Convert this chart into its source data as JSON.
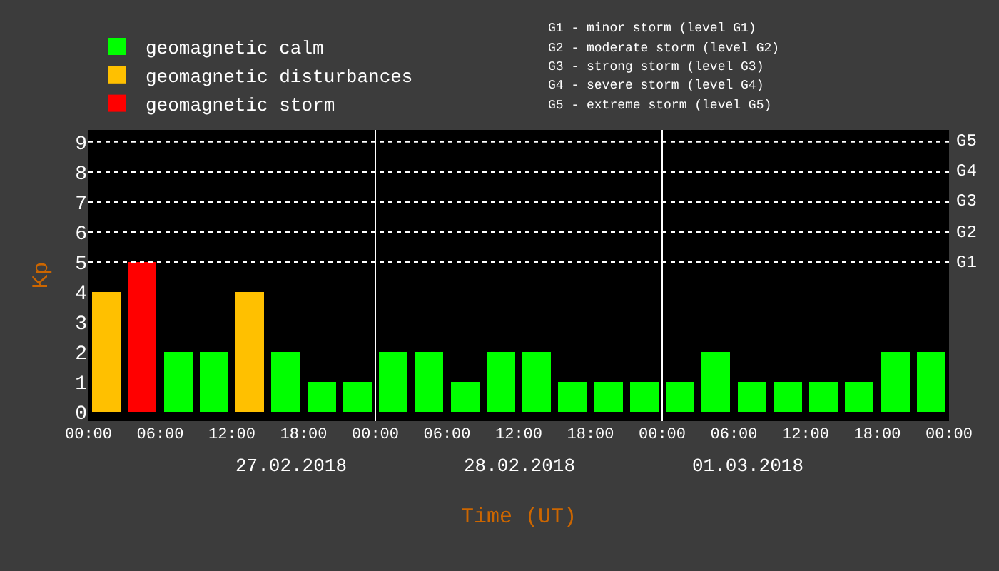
{
  "chart_data": {
    "type": "bar",
    "stacked": true,
    "xlabel": "Time (UT)",
    "ylabel": "Kp",
    "x": [
      "2018-02-27T01:30",
      "2018-02-27T04:30",
      "2018-02-27T07:30",
      "2018-02-27T10:30",
      "2018-02-27T13:30",
      "2018-02-27T16:30",
      "2018-02-27T19:30",
      "2018-02-27T22:30",
      "2018-02-28T01:30",
      "2018-02-28T04:30",
      "2018-02-28T07:30",
      "2018-02-28T10:30",
      "2018-02-28T13:30",
      "2018-02-28T16:30",
      "2018-02-28T19:30",
      "2018-02-28T22:30",
      "2018-03-01T01:30",
      "2018-03-01T04:30",
      "2018-03-01T07:30",
      "2018-03-01T10:30",
      "2018-03-01T13:30",
      "2018-03-01T16:30",
      "2018-03-01T19:30",
      "2018-03-01T22:30"
    ],
    "series": [
      {
        "name": "geomagnetic calm",
        "color": "#00ff00",
        "values": [
          null,
          null,
          2,
          2,
          null,
          2,
          1,
          1,
          2,
          2,
          1,
          2,
          2,
          1,
          1,
          1,
          1,
          2,
          1,
          1,
          1,
          1,
          2,
          2
        ]
      },
      {
        "name": "geomagnetic disturbances",
        "color": "#ffc000",
        "values": [
          4,
          null,
          null,
          null,
          4,
          null,
          null,
          null,
          null,
          null,
          null,
          null,
          null,
          null,
          null,
          null,
          null,
          null,
          null,
          null,
          null,
          null,
          null,
          null
        ]
      },
      {
        "name": "geomagnetic storm",
        "color": "#ff0000",
        "values": [
          null,
          5,
          null,
          null,
          null,
          null,
          null,
          null,
          null,
          null,
          null,
          null,
          null,
          null,
          null,
          null,
          null,
          null,
          null,
          null,
          null,
          null,
          null,
          null
        ]
      }
    ],
    "xlim": [
      "2018-02-27T00:00",
      "2018-03-02T00:00"
    ],
    "xticks": [
      {
        "value": "2018-02-27T00:00",
        "label": "00:00"
      },
      {
        "value": "2018-02-27T06:00",
        "label": "06:00"
      },
      {
        "value": "2018-02-27T12:00",
        "label": "12:00"
      },
      {
        "value": "2018-02-27T18:00",
        "label": "18:00"
      },
      {
        "value": "2018-02-28T00:00",
        "label": "00:00"
      },
      {
        "value": "2018-02-28T06:00",
        "label": "06:00"
      },
      {
        "value": "2018-02-28T12:00",
        "label": "12:00"
      },
      {
        "value": "2018-02-28T18:00",
        "label": "18:00"
      },
      {
        "value": "2018-03-01T00:00",
        "label": "00:00"
      },
      {
        "value": "2018-03-01T06:00",
        "label": "06:00"
      },
      {
        "value": "2018-03-01T12:00",
        "label": "12:00"
      },
      {
        "value": "2018-03-01T18:00",
        "label": "18:00"
      },
      {
        "value": "2018-03-02T00:00",
        "label": "00:00"
      }
    ],
    "ylim": [
      -0.3,
      9.4
    ],
    "yticks": [
      0,
      1,
      2,
      3,
      4,
      5,
      6,
      7,
      8,
      9
    ],
    "legend": "top left",
    "ref_lines": [
      {
        "axis": "x",
        "value": "2018-02-28T00:00",
        "label": null,
        "color": "#ffffff",
        "line_style": "solid"
      },
      {
        "axis": "x",
        "value": "2018-03-01T00:00",
        "label": null,
        "color": "#ffffff",
        "line_style": "solid"
      },
      {
        "axis": "y",
        "value": 5,
        "label": "G1",
        "color": "#ffffff",
        "line_style": "dotted"
      },
      {
        "axis": "y",
        "value": 6,
        "label": "G2",
        "color": "#ffffff",
        "line_style": "dotted"
      },
      {
        "axis": "y",
        "value": 7,
        "label": "G3",
        "color": "#ffffff",
        "line_style": "dotted"
      },
      {
        "axis": "y",
        "value": 8,
        "label": "G4",
        "color": "#ffffff",
        "line_style": "dotted"
      },
      {
        "axis": "y",
        "value": 9,
        "label": "G5",
        "color": "#ffffff",
        "line_style": "dotted"
      }
    ],
    "annotations": [
      "27.02.2018",
      "28.02.2018",
      "01.03.2018",
      "G1 - minor storm (level G1)",
      "G2 - moderate storm (level G2)",
      "G3 - strong storm (level G3)",
      "G4 - severe storm (level G4)",
      "G5 - extreme storm (level G5)"
    ]
  }
}
